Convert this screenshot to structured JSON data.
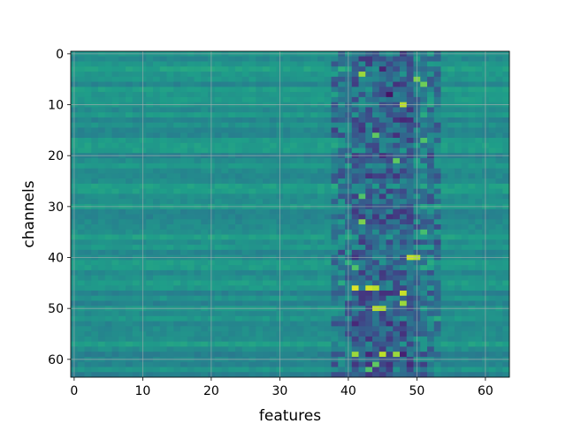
{
  "chart_data": {
    "type": "heatmap",
    "title": "",
    "xlabel": "features",
    "ylabel": "channels",
    "x_ticks": [
      0,
      10,
      20,
      30,
      40,
      50,
      60
    ],
    "y_ticks": [
      0,
      10,
      20,
      30,
      40,
      50,
      60
    ],
    "xlim": [
      -0.5,
      63.5
    ],
    "ylim": [
      63.5,
      -0.5
    ],
    "n_rows": 64,
    "n_cols": 64,
    "colormap": "viridis",
    "grid": true,
    "baseline_value": 0.5,
    "active_band_cols": [
      38,
      53
    ],
    "highlights": [
      {
        "row": 4,
        "col": 42,
        "value": 0.85
      },
      {
        "row": 5,
        "col": 50,
        "value": 0.8
      },
      {
        "row": 6,
        "col": 51,
        "value": 0.78
      },
      {
        "row": 8,
        "col": 46,
        "value": 0.05
      },
      {
        "row": 3,
        "col": 45,
        "value": 0.1
      },
      {
        "row": 10,
        "col": 48,
        "value": 0.9
      },
      {
        "row": 16,
        "col": 44,
        "value": 0.75
      },
      {
        "row": 17,
        "col": 51,
        "value": 0.72
      },
      {
        "row": 21,
        "col": 47,
        "value": 0.75
      },
      {
        "row": 28,
        "col": 42,
        "value": 0.72
      },
      {
        "row": 33,
        "col": 42,
        "value": 0.8
      },
      {
        "row": 35,
        "col": 51,
        "value": 0.7
      },
      {
        "row": 40,
        "col": 49,
        "value": 0.92
      },
      {
        "row": 40,
        "col": 50,
        "value": 0.88
      },
      {
        "row": 42,
        "col": 41,
        "value": 0.72
      },
      {
        "row": 46,
        "col": 41,
        "value": 0.95
      },
      {
        "row": 46,
        "col": 43,
        "value": 0.93
      },
      {
        "row": 46,
        "col": 44,
        "value": 0.9
      },
      {
        "row": 47,
        "col": 48,
        "value": 0.92
      },
      {
        "row": 49,
        "col": 48,
        "value": 0.85
      },
      {
        "row": 50,
        "col": 44,
        "value": 0.9
      },
      {
        "row": 50,
        "col": 45,
        "value": 0.88
      },
      {
        "row": 59,
        "col": 41,
        "value": 0.85
      },
      {
        "row": 59,
        "col": 45,
        "value": 0.9
      },
      {
        "row": 59,
        "col": 47,
        "value": 0.85
      },
      {
        "row": 61,
        "col": 44,
        "value": 0.75
      },
      {
        "row": 62,
        "col": 43,
        "value": 0.72
      }
    ]
  }
}
